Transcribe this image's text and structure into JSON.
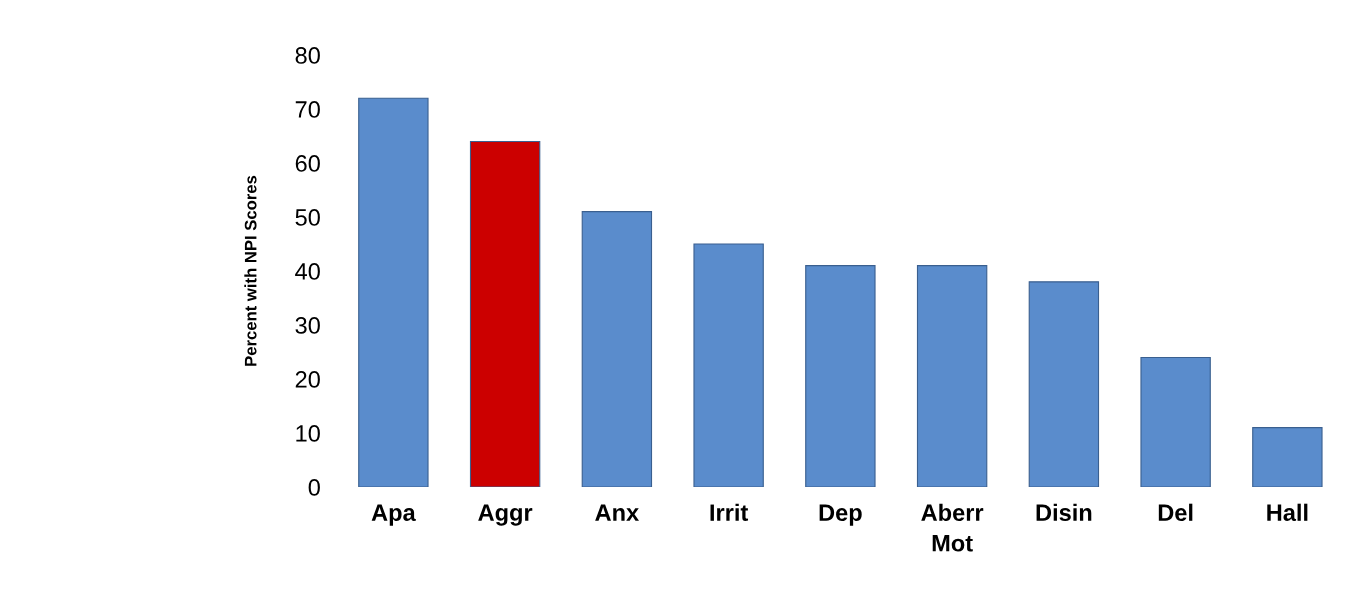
{
  "chart_data": {
    "type": "bar",
    "ylabel": "Percent with NPI Scores",
    "categories": [
      "Apa",
      "Aggr",
      "Anx",
      "Irrit",
      "Dep",
      "Aberr\nMot",
      "Disin",
      "Del",
      "Hall"
    ],
    "values": [
      72,
      64,
      51,
      45,
      41,
      41,
      38,
      24,
      11
    ],
    "colors": [
      "#5a8ccc",
      "#cc0000",
      "#5a8ccc",
      "#5a8ccc",
      "#5a8ccc",
      "#5a8ccc",
      "#5a8ccc",
      "#5a8ccc",
      "#5a8ccc"
    ],
    "ylim": [
      0,
      80
    ],
    "yticks": [
      0,
      10,
      20,
      30,
      40,
      50,
      60,
      70,
      80
    ],
    "grid": false
  }
}
